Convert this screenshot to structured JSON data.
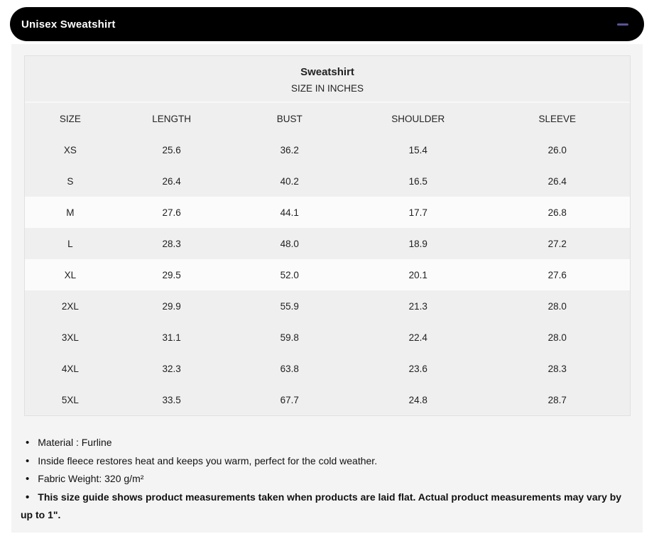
{
  "accordion": {
    "title": "Unisex Sweatshirt",
    "collapse_icon": "minus"
  },
  "size_chart": {
    "title": "Sweatshirt",
    "subtitle": "SIZE IN INCHES",
    "columns": [
      "SIZE",
      "LENGTH",
      "BUST",
      "SHOULDER",
      "SLEEVE"
    ],
    "rows": [
      {
        "size": "XS",
        "length": "25.6",
        "bust": "36.2",
        "shoulder": "15.4",
        "sleeve": "26.0"
      },
      {
        "size": "S",
        "length": "26.4",
        "bust": "40.2",
        "shoulder": "16.5",
        "sleeve": "26.4"
      },
      {
        "size": "M",
        "length": "27.6",
        "bust": "44.1",
        "shoulder": "17.7",
        "sleeve": "26.8"
      },
      {
        "size": "L",
        "length": "28.3",
        "bust": "48.0",
        "shoulder": "18.9",
        "sleeve": "27.2"
      },
      {
        "size": "XL",
        "length": "29.5",
        "bust": "52.0",
        "shoulder": "20.1",
        "sleeve": "27.6"
      },
      {
        "size": "2XL",
        "length": "29.9",
        "bust": "55.9",
        "shoulder": "21.3",
        "sleeve": "28.0"
      },
      {
        "size": "3XL",
        "length": "31.1",
        "bust": "59.8",
        "shoulder": "22.4",
        "sleeve": "28.0"
      },
      {
        "size": "4XL",
        "length": "32.3",
        "bust": "63.8",
        "shoulder": "23.6",
        "sleeve": "28.3"
      },
      {
        "size": "5XL",
        "length": "33.5",
        "bust": "67.7",
        "shoulder": "24.8",
        "sleeve": "28.7"
      }
    ],
    "highlighted_rows": [
      "M",
      "XL"
    ]
  },
  "notes": {
    "items": [
      {
        "text": "Material : Furline",
        "bold": false
      },
      {
        "text": "Inside fleece restores heat and keeps you warm, perfect for the cold weather.",
        "bold": false
      },
      {
        "text": "Fabric Weight: 320 g/m²",
        "bold": false
      },
      {
        "text": "This size guide shows product measurements taken when products are laid flat. Actual product measurements may vary by up to 1\".",
        "bold": true
      }
    ]
  },
  "colors": {
    "header_bg": "#000000",
    "header_text": "#ffffff",
    "accent_minus": "#5a5396",
    "content_bg": "#f4f4f4",
    "table_gray": "#efefef",
    "row_highlight": "#fbfbfb",
    "table_border": "#e0e0e0"
  }
}
